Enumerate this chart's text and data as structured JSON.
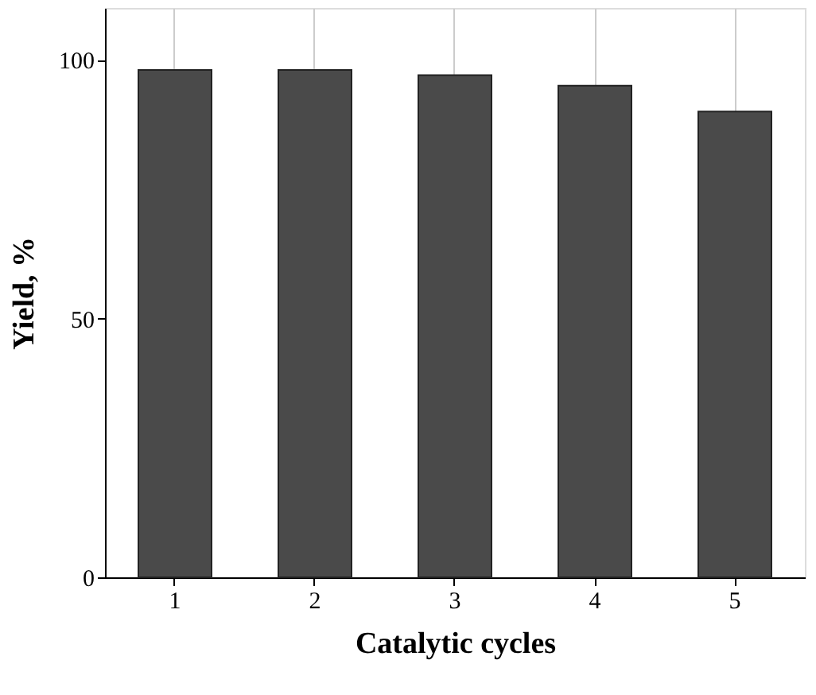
{
  "chart_data": {
    "type": "bar",
    "xlabel": "Catalytic cycles",
    "ylabel": "Yield, %",
    "categories": [
      "1",
      "2",
      "3",
      "4",
      "5"
    ],
    "values": [
      98,
      98,
      97,
      95,
      90
    ],
    "color": "#4a4a4a",
    "ylim": [
      0,
      110
    ],
    "yticks": [
      0,
      50,
      100
    ],
    "grid": "x"
  }
}
